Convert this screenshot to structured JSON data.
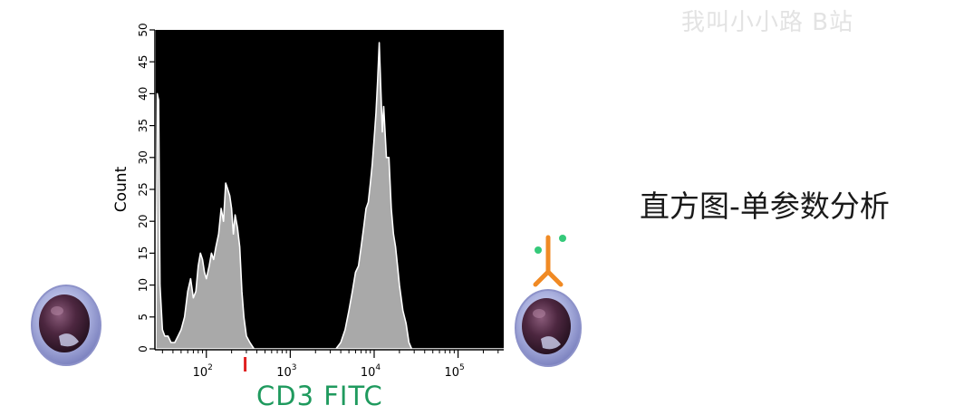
{
  "watermark": "我叫小小路 B站",
  "side_title": "直方图-单参数分析",
  "colors": {
    "plot_bg": "#000000",
    "histogram_fill": "#a9a9a9",
    "histogram_outline": "#ffffff",
    "axis_label": "#1f9a5e",
    "gate_marker": "#e02020",
    "antibody": "#f08a24",
    "fluor_dot": "#35c97a"
  },
  "icons": [
    "cell-icon",
    "antibody-labeled-cell-icon"
  ],
  "chart_data": {
    "type": "area",
    "title": "",
    "xlabel": "CD3 FITC",
    "ylabel": "Count",
    "xscale": "log",
    "xlim": [
      25,
      350000
    ],
    "ylim": [
      0,
      50
    ],
    "grid": false,
    "xticks": [
      {
        "value": 100,
        "base": "10",
        "exp": "2"
      },
      {
        "value": 1000,
        "base": "10",
        "exp": "3"
      },
      {
        "value": 10000,
        "base": "10",
        "exp": "4"
      },
      {
        "value": 100000,
        "base": "10",
        "exp": "5"
      }
    ],
    "yticks": [
      0,
      5,
      10,
      15,
      20,
      25,
      30,
      35,
      40,
      45,
      50
    ],
    "gate_marker_x": 290,
    "series": [
      {
        "x": [
          25,
          26,
          27,
          28,
          30,
          32,
          35,
          38,
          42,
          46,
          50,
          55,
          60,
          65,
          70,
          75,
          80,
          85,
          90,
          95,
          100,
          108,
          115,
          122,
          130,
          140,
          150,
          160,
          170,
          180,
          190,
          200,
          210,
          220,
          235,
          250,
          265,
          280,
          300,
          330,
          370,
          420,
          500,
          700,
          1000,
          1500,
          2000,
          2500,
          3000,
          3500,
          4000,
          4500,
          5000,
          5500,
          6000,
          6500,
          7000,
          7500,
          8000,
          8500,
          9000,
          9500,
          10000,
          10500,
          11000,
          11500,
          12000,
          12500,
          13000,
          14000,
          15000,
          16000,
          17000,
          18000,
          19000,
          20000,
          22000,
          24000,
          26000,
          28000,
          30000,
          33000,
          40000,
          60000,
          100000,
          200000,
          350000
        ],
        "y": [
          0,
          40,
          39,
          10,
          3,
          2,
          2,
          1,
          1,
          2,
          3,
          5,
          9,
          11,
          8,
          9,
          13,
          15,
          14,
          12,
          11,
          13,
          15,
          14,
          16,
          18,
          22,
          20,
          26,
          25,
          24,
          22,
          18,
          21,
          19,
          16,
          9,
          5,
          2,
          1,
          0,
          0,
          0,
          0,
          0,
          0,
          0,
          0,
          0,
          0,
          1,
          3,
          6,
          9,
          12,
          13,
          16,
          19,
          22,
          23,
          26,
          29,
          33,
          37,
          42,
          48,
          41,
          34,
          38,
          30,
          30,
          22,
          18,
          16,
          13,
          10,
          6,
          4,
          1,
          0,
          0,
          0,
          0,
          0,
          0,
          0,
          0
        ]
      }
    ]
  }
}
